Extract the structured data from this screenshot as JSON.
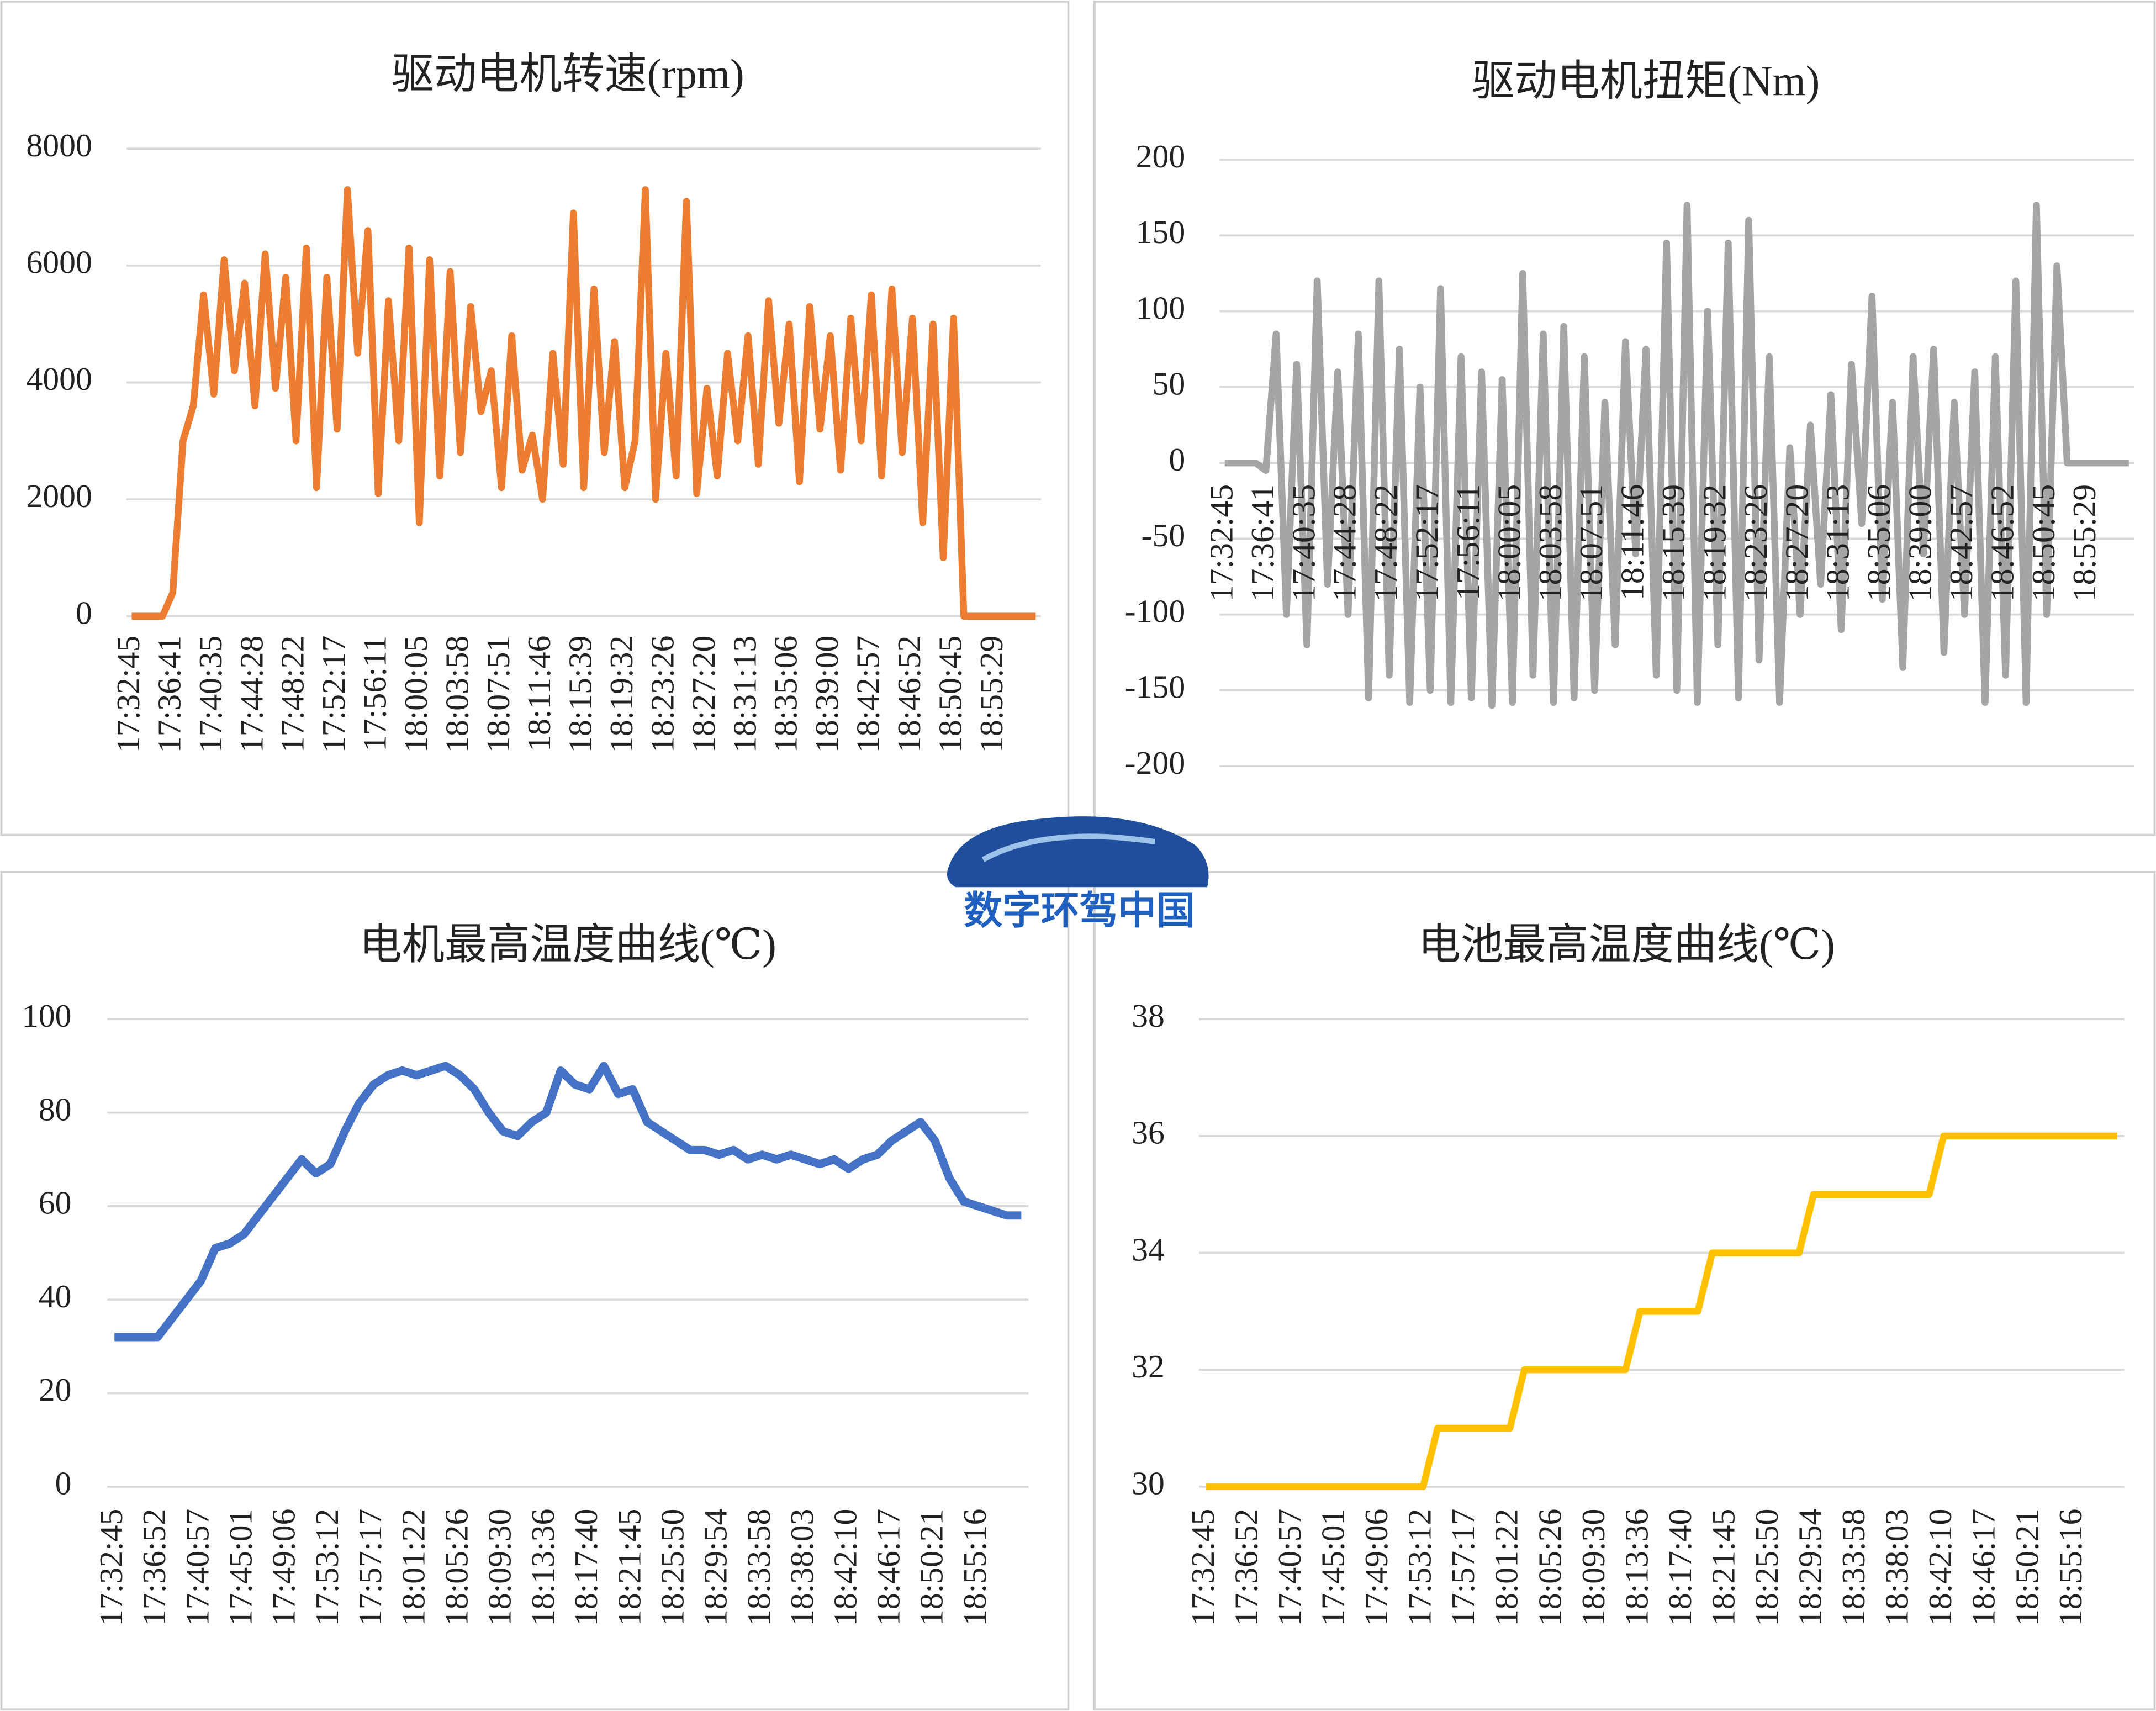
{
  "chart_data": [
    {
      "type": "line",
      "title": "驱动电机转速(rpm)",
      "color": "#ed7d31",
      "grid": true,
      "ylim": [
        0,
        8000
      ],
      "yticks": [
        0,
        2000,
        4000,
        6000,
        8000
      ],
      "categories": [
        "17:32:45",
        null,
        null,
        null,
        "17:36:41",
        null,
        null,
        null,
        "17:40:35",
        null,
        null,
        null,
        "17:44:28",
        null,
        null,
        null,
        "17:48:22",
        null,
        null,
        null,
        "17:52:17",
        null,
        null,
        null,
        "17:56:11",
        null,
        null,
        null,
        "18:00:05",
        null,
        null,
        null,
        "18:03:58",
        null,
        null,
        null,
        "18:07:51",
        null,
        null,
        null,
        "18:11:46",
        null,
        null,
        null,
        "18:15:39",
        null,
        null,
        null,
        "18:19:32",
        null,
        null,
        null,
        "18:23:26",
        null,
        null,
        null,
        "18:27:20",
        null,
        null,
        null,
        "18:31:13",
        null,
        null,
        null,
        "18:35:06",
        null,
        null,
        null,
        "18:39:00",
        null,
        null,
        null,
        "18:42:57",
        null,
        null,
        null,
        "18:46:52",
        null,
        null,
        null,
        "18:50:45",
        null,
        null,
        null,
        "18:55:29",
        null,
        null,
        null,
        null
      ],
      "values": [
        0,
        0,
        0,
        0,
        400,
        3000,
        3600,
        5500,
        3800,
        6100,
        4200,
        5700,
        3600,
        6200,
        3900,
        5800,
        3000,
        6300,
        2200,
        5800,
        3200,
        7300,
        4500,
        6600,
        2100,
        5400,
        3000,
        6300,
        1600,
        6100,
        2400,
        5900,
        2800,
        5300,
        3500,
        4200,
        2200,
        4800,
        2500,
        3100,
        2000,
        4500,
        2600,
        6900,
        2200,
        5600,
        2800,
        4700,
        2200,
        3000,
        7300,
        2000,
        4500,
        2400,
        7100,
        2100,
        3900,
        2400,
        4500,
        3000,
        4800,
        2600,
        5400,
        3300,
        5000,
        2300,
        5300,
        3200,
        4800,
        2500,
        5100,
        3000,
        5500,
        2400,
        5600,
        2800,
        5100,
        1600,
        5000,
        1000,
        5100,
        0,
        0,
        0,
        0,
        0,
        0,
        0,
        0
      ]
    },
    {
      "type": "line",
      "title": "驱动电机扭矩(Nm)",
      "color": "#a5a5a5",
      "grid": true,
      "ylim": [
        -200,
        200
      ],
      "yticks": [
        -200,
        -150,
        -100,
        -50,
        0,
        50,
        100,
        150,
        200
      ],
      "categories": [
        "17:32:45",
        null,
        null,
        null,
        "17:36:41",
        null,
        null,
        null,
        "17:40:35",
        null,
        null,
        null,
        "17:44:28",
        null,
        null,
        null,
        "17:48:22",
        null,
        null,
        null,
        "17:52:17",
        null,
        null,
        null,
        "17:56:11",
        null,
        null,
        null,
        "18:00:05",
        null,
        null,
        null,
        "18:03:58",
        null,
        null,
        null,
        "18:07:51",
        null,
        null,
        null,
        "18:11:46",
        null,
        null,
        null,
        "18:15:39",
        null,
        null,
        null,
        "18:19:32",
        null,
        null,
        null,
        "18:23:26",
        null,
        null,
        null,
        "18:27:20",
        null,
        null,
        null,
        "18:31:13",
        null,
        null,
        null,
        "18:35:06",
        null,
        null,
        null,
        "18:39:00",
        null,
        null,
        null,
        "18:42:57",
        null,
        null,
        null,
        "18:46:52",
        null,
        null,
        null,
        "18:50:45",
        null,
        null,
        null,
        "18:55:29",
        null,
        null,
        null,
        null
      ],
      "values": [
        0,
        0,
        0,
        0,
        -5,
        85,
        -100,
        65,
        -120,
        120,
        -80,
        60,
        -100,
        85,
        -155,
        120,
        -140,
        75,
        -158,
        50,
        -150,
        115,
        -158,
        70,
        -155,
        60,
        -160,
        55,
        -158,
        125,
        -140,
        85,
        -158,
        90,
        -155,
        70,
        -150,
        40,
        -120,
        80,
        -60,
        75,
        -140,
        145,
        -150,
        170,
        -158,
        100,
        -120,
        145,
        -155,
        160,
        -130,
        70,
        -158,
        10,
        -100,
        25,
        -80,
        45,
        -110,
        65,
        -40,
        110,
        -90,
        40,
        -135,
        70,
        -60,
        75,
        -125,
        40,
        -100,
        60,
        -158,
        70,
        -140,
        120,
        -158,
        170,
        -100,
        130,
        0,
        0,
        0,
        0,
        0,
        0,
        0
      ]
    },
    {
      "type": "line",
      "title": "电机最高温度曲线(℃)",
      "color": "#4472c4",
      "grid": true,
      "ylim": [
        0,
        100
      ],
      "yticks": [
        0,
        20,
        40,
        60,
        80,
        100
      ],
      "categories": [
        "17:32:45",
        null,
        null,
        "17:36:52",
        null,
        null,
        "17:40:57",
        null,
        null,
        "17:45:01",
        null,
        null,
        "17:49:06",
        null,
        null,
        "17:53:12",
        null,
        null,
        "17:57:17",
        null,
        null,
        "18:01:22",
        null,
        null,
        "18:05:26",
        null,
        null,
        "18:09:30",
        null,
        null,
        "18:13:36",
        null,
        null,
        "18:17:40",
        null,
        null,
        "18:21:45",
        null,
        null,
        "18:25:50",
        null,
        null,
        "18:29:54",
        null,
        null,
        "18:33:58",
        null,
        null,
        "18:38:03",
        null,
        null,
        "18:42:10",
        null,
        null,
        "18:46:17",
        null,
        null,
        "18:50:21",
        null,
        null,
        "18:55:16",
        null,
        null,
        null
      ],
      "values": [
        32,
        32,
        32,
        32,
        36,
        40,
        44,
        51,
        52,
        54,
        58,
        62,
        66,
        70,
        67,
        69,
        76,
        82,
        86,
        88,
        89,
        88,
        89,
        90,
        88,
        85,
        80,
        76,
        75,
        78,
        80,
        89,
        86,
        85,
        90,
        84,
        85,
        78,
        76,
        74,
        72,
        72,
        71,
        72,
        70,
        71,
        70,
        71,
        70,
        69,
        70,
        68,
        70,
        71,
        74,
        76,
        78,
        74,
        66,
        61,
        60,
        59,
        58,
        58
      ]
    },
    {
      "type": "line",
      "title": "电池最高温度曲线(℃)",
      "color": "#ffc000",
      "grid": true,
      "ylim": [
        30,
        38
      ],
      "yticks": [
        30,
        32,
        34,
        36,
        38
      ],
      "categories": [
        "17:32:45",
        null,
        null,
        "17:36:52",
        null,
        null,
        "17:40:57",
        null,
        null,
        "17:45:01",
        null,
        null,
        "17:49:06",
        null,
        null,
        "17:53:12",
        null,
        null,
        "17:57:17",
        null,
        null,
        "18:01:22",
        null,
        null,
        "18:05:26",
        null,
        null,
        "18:09:30",
        null,
        null,
        "18:13:36",
        null,
        null,
        "18:17:40",
        null,
        null,
        "18:21:45",
        null,
        null,
        "18:25:50",
        null,
        null,
        "18:29:54",
        null,
        null,
        "18:33:58",
        null,
        null,
        "18:38:03",
        null,
        null,
        "18:42:10",
        null,
        null,
        "18:46:17",
        null,
        null,
        "18:50:21",
        null,
        null,
        "18:55:16",
        null,
        null,
        null
      ],
      "values": [
        30,
        30,
        30,
        30,
        30,
        30,
        30,
        30,
        30,
        30,
        30,
        30,
        30,
        30,
        30,
        30,
        31,
        31,
        31,
        31,
        31,
        31,
        32,
        32,
        32,
        32,
        32,
        32,
        32,
        32,
        33,
        33,
        33,
        33,
        33,
        34,
        34,
        34,
        34,
        34,
        34,
        34,
        35,
        35,
        35,
        35,
        35,
        35,
        35,
        35,
        35,
        36,
        36,
        36,
        36,
        36,
        36,
        36,
        36,
        36,
        36,
        36,
        36,
        36
      ]
    }
  ],
  "logo": {
    "text": "数字环驾中国"
  }
}
